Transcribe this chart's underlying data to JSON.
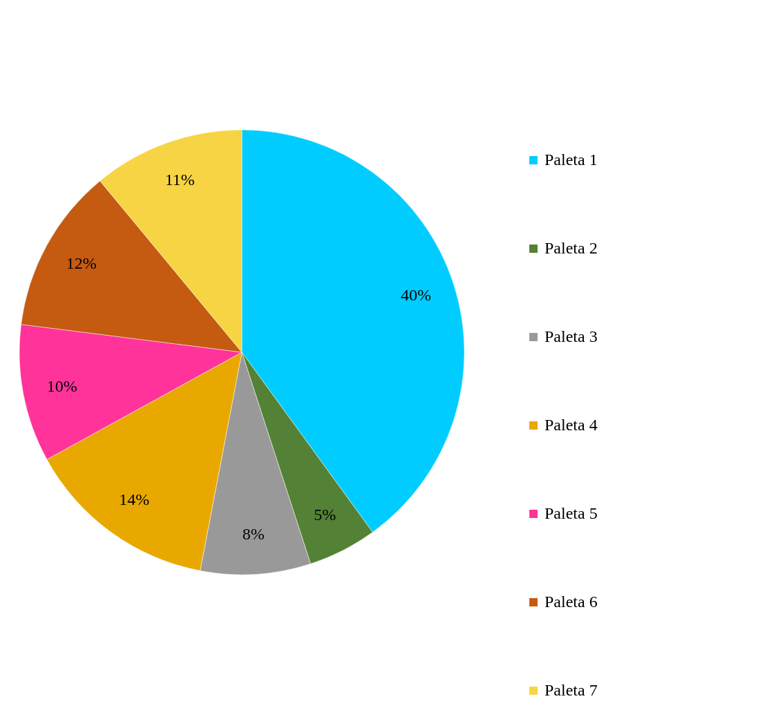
{
  "chart_data": {
    "type": "pie",
    "categories": [
      "Paleta 1",
      "Paleta 2",
      "Paleta 3",
      "Paleta 4",
      "Paleta 5",
      "Paleta 6",
      "Paleta 7"
    ],
    "values": [
      40,
      5,
      8,
      14,
      10,
      12,
      11
    ],
    "colors": [
      "#00ccff",
      "#538135",
      "#999999",
      "#e8a800",
      "#ff3399",
      "#c55a11",
      "#f7d443"
    ],
    "value_labels": [
      "40%",
      "5%",
      "8%",
      "14%",
      "10%",
      "12%",
      "11%"
    ],
    "legend": "right"
  }
}
